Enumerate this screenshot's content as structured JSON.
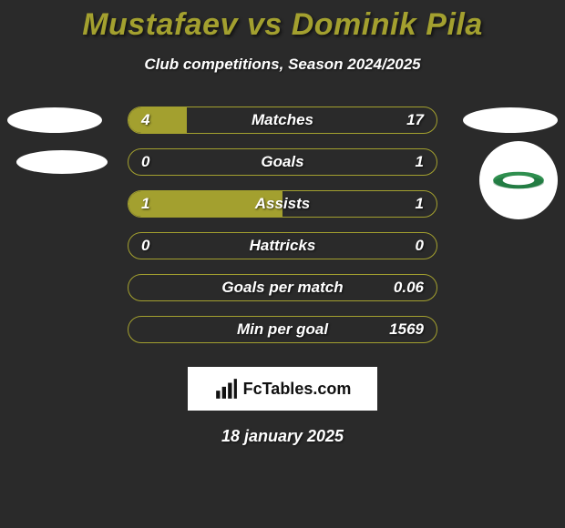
{
  "title_text": "Mustafaev vs Dominik Pila",
  "title_color": "#a3a02f",
  "subtitle": "Club competitions, Season 2024/2025",
  "background_color": "#2a2a2a",
  "text_color": "#ffffff",
  "accent_color": "#a3a02f",
  "bar_border_color": "#a3a02f",
  "badge_fill": "#ffffff",
  "club_badge": {
    "stripe_color": "#2f8f4f",
    "stripe_shadow": "#0f5a2f"
  },
  "watermark": {
    "text": "FcTables.com",
    "icon_color": "#111111",
    "bg": "#ffffff"
  },
  "date": "18 january 2025",
  "stats": [
    {
      "label": "Matches",
      "left_value": "4",
      "right_value": "17",
      "left_fill_pct": 19,
      "right_fill_pct": 0,
      "left_fill_color": "#a3a02f",
      "right_fill_color": "#2a2a2a",
      "show_left_badge": true,
      "show_right_badge": true
    },
    {
      "label": "Goals",
      "left_value": "0",
      "right_value": "1",
      "left_fill_pct": 0,
      "right_fill_pct": 0,
      "left_fill_color": "#a3a02f",
      "right_fill_color": "#2a2a2a",
      "show_mid_left_badge": true,
      "show_club_badge": true
    },
    {
      "label": "Assists",
      "left_value": "1",
      "right_value": "1",
      "left_fill_pct": 50,
      "right_fill_pct": 0,
      "left_fill_color": "#a3a02f",
      "right_fill_color": "#2a2a2a"
    },
    {
      "label": "Hattricks",
      "left_value": "0",
      "right_value": "0",
      "left_fill_pct": 0,
      "right_fill_pct": 0,
      "left_fill_color": "#a3a02f",
      "right_fill_color": "#2a2a2a"
    },
    {
      "label": "Goals per match",
      "left_value": "",
      "right_value": "0.06",
      "left_fill_pct": 0,
      "right_fill_pct": 0,
      "left_fill_color": "#a3a02f",
      "right_fill_color": "#2a2a2a"
    },
    {
      "label": "Min per goal",
      "left_value": "",
      "right_value": "1569",
      "left_fill_pct": 0,
      "right_fill_pct": 0,
      "left_fill_color": "#a3a02f",
      "right_fill_color": "#2a2a2a"
    }
  ]
}
